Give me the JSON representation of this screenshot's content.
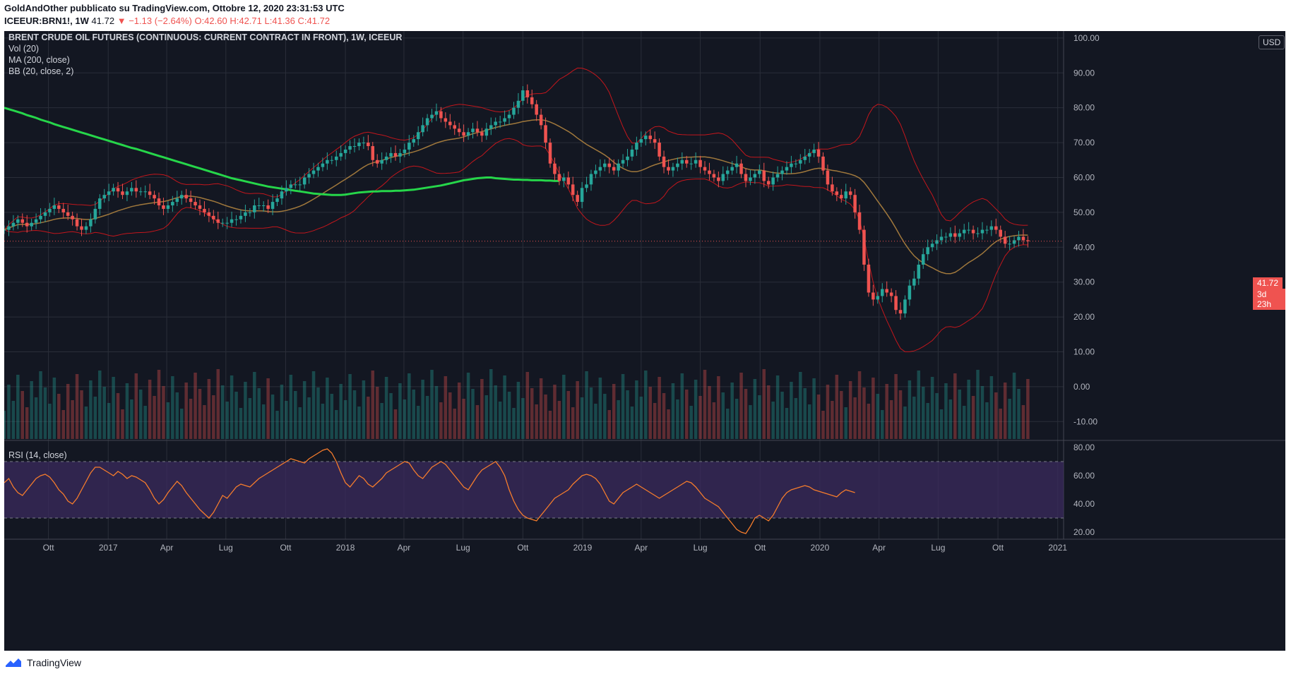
{
  "header": {
    "publisher_line": "GoldAndOther pubblicato su TradingView.com, Ottobre 12, 2020 23:31:53 UTC",
    "symbol": "ICEEUR:BRN1!, 1W",
    "last": "41.72",
    "change": "−1.13 (−2.64%)",
    "open": "O:42.60",
    "high": "H:42.71",
    "low": "L:41.36",
    "close": "C:41.72"
  },
  "legend": {
    "title": "BRENT CRUDE OIL FUTURES (CONTINUOUS: CURRENT CONTRACT IN FRONT), 1W, ICEEUR",
    "vol": "Vol (20)",
    "ma": "MA (200, close)",
    "bb": "BB (20, close, 2)",
    "rsi": "RSI (14, close)"
  },
  "currency": "USD",
  "last_price_label": "41.72",
  "countdown_label": "3d 23h",
  "footer_brand": "TradingView",
  "colors": {
    "background": "#131722",
    "up": "#26a69a",
    "down": "#ef5350",
    "ma200": "#26d64a",
    "bb_basis": "#a0783c",
    "bb_bands": "#c3161c",
    "rsi_line": "#f57c2c",
    "rsi_band": "#3b2b5e"
  },
  "chart_data": {
    "type": "candlestick",
    "price_axis": {
      "ticks": [
        10,
        20,
        30,
        40,
        50,
        60,
        70,
        80,
        90,
        100
      ],
      "tick_labels": [
        "10.00",
        "20.00",
        "30.00",
        "40.00",
        "50.00",
        "60.00",
        "70.00",
        "80.00",
        "90.00",
        "100.00"
      ],
      "range": [
        -15,
        102
      ]
    },
    "volume_axis_labels": [
      "0.00",
      "-10.00"
    ],
    "rsi_axis": {
      "ticks": [
        20,
        40,
        60,
        80
      ],
      "tick_labels": [
        "20.00",
        "40.00",
        "60.00",
        "80.00"
      ],
      "range": [
        15,
        85
      ],
      "band": [
        30,
        70
      ]
    },
    "x_axis": {
      "start": "2016-07-25",
      "end": "2021-01-10",
      "tick_labels": [
        "Ott",
        "2017",
        "Apr",
        "Lug",
        "Ott",
        "2018",
        "Apr",
        "Lug",
        "Ott",
        "2019",
        "Apr",
        "Lug",
        "Ott",
        "2020",
        "Apr",
        "Lug",
        "Ott",
        "2021"
      ],
      "tick_dates": [
        "2016-10-01",
        "2017-01-01",
        "2017-04-01",
        "2017-07-01",
        "2017-10-01",
        "2018-01-01",
        "2018-04-01",
        "2018-07-01",
        "2018-10-01",
        "2019-01-01",
        "2019-04-01",
        "2019-07-01",
        "2019-10-01",
        "2020-01-01",
        "2020-04-01",
        "2020-07-01",
        "2020-10-01",
        "2021-01-01"
      ]
    },
    "weekly_close": {
      "start": "2016-07-25",
      "interval_days": 7,
      "values": [
        45,
        46,
        47,
        48,
        47,
        46,
        47,
        48,
        49,
        50,
        51,
        52,
        51,
        50,
        49,
        48,
        46,
        45,
        46,
        48,
        51,
        54,
        55,
        56,
        57,
        56,
        55,
        56,
        57,
        56,
        56,
        56,
        55,
        54,
        52,
        51,
        52,
        53,
        54,
        55,
        54,
        53,
        52,
        51,
        50,
        49,
        48,
        47,
        47,
        47,
        48,
        48,
        49,
        50,
        50,
        52,
        52,
        52,
        51,
        53,
        54,
        56,
        57,
        58,
        58,
        58,
        60,
        61,
        62,
        63,
        64,
        65,
        65,
        66,
        67,
        68,
        69,
        69,
        70,
        70,
        69,
        65,
        64,
        65,
        66,
        67,
        66,
        67,
        68,
        70,
        71,
        73,
        75,
        77,
        78,
        79,
        77,
        76,
        75,
        74,
        73,
        72,
        73,
        74,
        73,
        72,
        74,
        75,
        76,
        76,
        77,
        78,
        80,
        82,
        85,
        83,
        81,
        78,
        75,
        70,
        64,
        61,
        59,
        60,
        58,
        55,
        53,
        57,
        58,
        61,
        62,
        63,
        64,
        63,
        62,
        64,
        65,
        66,
        68,
        70,
        71,
        72,
        71,
        70,
        66,
        63,
        62,
        63,
        64,
        65,
        64,
        64,
        65,
        63,
        62,
        61,
        60,
        59,
        61,
        62,
        63,
        64,
        61,
        59,
        60,
        61,
        62,
        59,
        58,
        60,
        61,
        62,
        63,
        64,
        64,
        65,
        66,
        67,
        68,
        66,
        62,
        58,
        56,
        55,
        54,
        56,
        55,
        50,
        45,
        35,
        27,
        25,
        26,
        28,
        27,
        26,
        22,
        21,
        25,
        29,
        31,
        35,
        38,
        40,
        41,
        42,
        43,
        43,
        44,
        43,
        44,
        45,
        45,
        44,
        44,
        45,
        45,
        46,
        45,
        43,
        41,
        41,
        42,
        43,
        42,
        41.72
      ]
    },
    "ma200_close": {
      "start": "2016-07-25",
      "interval_days": 7,
      "values": [
        80,
        79.6,
        79.2,
        78.8,
        78.4,
        77.9,
        77.5,
        77.1,
        76.6,
        76.2,
        75.8,
        75.3,
        74.9,
        74.5,
        74.1,
        73.7,
        73.3,
        72.9,
        72.5,
        72.1,
        71.7,
        71.3,
        70.9,
        70.5,
        70.1,
        69.7,
        69.3,
        68.9,
        68.5,
        68.2,
        67.8,
        67.4,
        67.0,
        66.6,
        66.2,
        65.8,
        65.4,
        65.0,
        64.6,
        64.2,
        63.8,
        63.4,
        63.0,
        62.6,
        62.2,
        61.8,
        61.4,
        61.0,
        60.6,
        60.2,
        59.8,
        59.5,
        59.2,
        58.9,
        58.6,
        58.3,
        58.0,
        57.7,
        57.4,
        57.2,
        57.0,
        56.8,
        56.6,
        56.4,
        56.2,
        56.0,
        55.8,
        55.6,
        55.4,
        55.3,
        55.2,
        55.1,
        55.0,
        55.0,
        55.0,
        55.1,
        55.3,
        55.5,
        55.7,
        55.8,
        55.9,
        56.0,
        56.0,
        56.1,
        56.1,
        56.1,
        56.2,
        56.2,
        56.3,
        56.4,
        56.5,
        56.7,
        56.9,
        57.1,
        57.3,
        57.5,
        57.7,
        58.0,
        58.3,
        58.6,
        58.9,
        59.2,
        59.4,
        59.6,
        59.8,
        59.9,
        60.0,
        60.0,
        59.8,
        59.7,
        59.6,
        59.5,
        59.4,
        59.4,
        59.3,
        59.3,
        59.2,
        59.2,
        59.2,
        59.1,
        59.1,
        59.0,
        59.0
      ]
    },
    "rsi_14": {
      "start": "2016-07-25",
      "interval_days": 7,
      "values": [
        55,
        58,
        52,
        48,
        46,
        50,
        54,
        58,
        60,
        61,
        59,
        55,
        50,
        47,
        42,
        40,
        44,
        50,
        56,
        62,
        66,
        66,
        64,
        62,
        60,
        63,
        61,
        58,
        60,
        59,
        57,
        55,
        50,
        44,
        40,
        43,
        48,
        52,
        56,
        53,
        48,
        44,
        40,
        36,
        33,
        30,
        34,
        40,
        46,
        44,
        48,
        52,
        54,
        53,
        52,
        55,
        58,
        60,
        62,
        64,
        66,
        68,
        70,
        72,
        71,
        70,
        69,
        72,
        74,
        76,
        78,
        79,
        76,
        70,
        62,
        55,
        52,
        56,
        60,
        58,
        54,
        52,
        55,
        58,
        62,
        64,
        66,
        68,
        70,
        69,
        64,
        60,
        58,
        62,
        66,
        68,
        70,
        68,
        64,
        60,
        56,
        52,
        50,
        55,
        60,
        64,
        66,
        68,
        70,
        66,
        60,
        50,
        42,
        36,
        32,
        30,
        29,
        28,
        32,
        36,
        40,
        44,
        46,
        48,
        50,
        54,
        57,
        60,
        61,
        60,
        58,
        54,
        48,
        42,
        40,
        44,
        48,
        50,
        52,
        54,
        52,
        50,
        48,
        46,
        44,
        46,
        48,
        50,
        52,
        54,
        56,
        55,
        52,
        48,
        44,
        42,
        40,
        38,
        34,
        30,
        26,
        22,
        20,
        19,
        24,
        30,
        32,
        30,
        28,
        32,
        38,
        44,
        48,
        50,
        51,
        52,
        53,
        52,
        50,
        49,
        48,
        47,
        46,
        45,
        48,
        50,
        49,
        48
      ]
    },
    "volume_note": "volume bars shown in lower pane, colored by candle direction"
  }
}
